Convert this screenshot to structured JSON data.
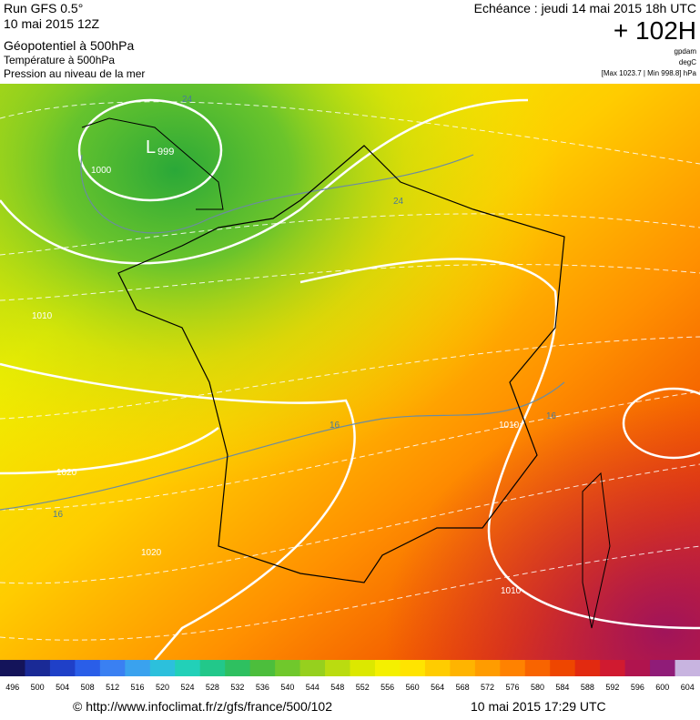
{
  "header": {
    "model": "Run GFS 0.5°",
    "run": "10 mai 2015 12Z",
    "title": "Géopotentiel à 500hPa",
    "subtitle1": "Température à 500hPa",
    "subtitle2": "Pression au niveau de la mer",
    "echeance": "Echéance : jeudi 14 mai 2015 18h UTC",
    "lead": "+ 102H",
    "unit1": "gpdam",
    "unit2": "degC",
    "extremes": "[Max 1023.7 | Min 998.8] hPa"
  },
  "map_labels": [
    "L",
    "999",
    "1000",
    "1010",
    "1020",
    "1020",
    "1010",
    "1010",
    "24",
    "24",
    "16",
    "16",
    "16"
  ],
  "legend": {
    "values": [
      496,
      500,
      504,
      508,
      512,
      516,
      520,
      524,
      528,
      532,
      536,
      540,
      544,
      548,
      552,
      556,
      560,
      564,
      568,
      572,
      576,
      580,
      584,
      588,
      592,
      596,
      600,
      604
    ],
    "colors": [
      "#14145a",
      "#1a2a96",
      "#1f40c8",
      "#2a5ee8",
      "#3a80f2",
      "#3aa2ee",
      "#2cc0dc",
      "#22d0b8",
      "#22c88a",
      "#2ec060",
      "#4cbe3c",
      "#70c82c",
      "#96d01e",
      "#badc10",
      "#dce800",
      "#f4f000",
      "#ffe400",
      "#ffcc00",
      "#ffb400",
      "#ff9c00",
      "#ff8200",
      "#f86400",
      "#ee4600",
      "#e22a10",
      "#d01a30",
      "#b0144e",
      "#901c78",
      "#c8b4e0"
    ]
  },
  "footer": {
    "url": "© http://www.infoclimat.fr/z/gfs/france/500/102",
    "time": "10 mai 2015 17:29 UTC"
  }
}
